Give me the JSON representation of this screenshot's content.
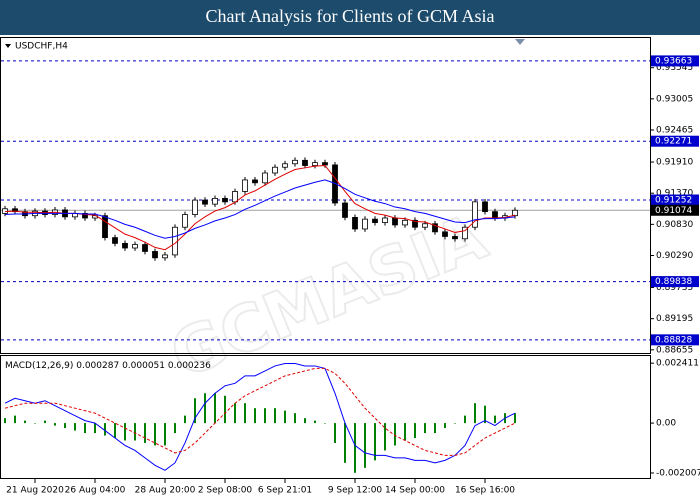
{
  "title": "Chart Analysis for Clients of GCM Asia",
  "watermark": "GCMASIA",
  "chart_data": [
    {
      "type": "candlestick",
      "symbol": "USDCHF,H4",
      "categories": [
        null,
        null,
        null,
        "21 Aug 2020",
        null,
        null,
        null,
        null,
        null,
        "26 Aug 04:00",
        null,
        null,
        null,
        null,
        null,
        null,
        "28 Aug 20:00",
        null,
        null,
        null,
        null,
        null,
        "2 Sep 08:00",
        null,
        null,
        null,
        null,
        null,
        "6 Sep 21:01",
        null,
        null,
        null,
        null,
        null,
        null,
        "9 Sep 12:00",
        null,
        null,
        null,
        null,
        null,
        "14 Sep 00:00",
        null,
        null,
        null,
        null,
        null,
        null,
        "16 Sep 16:00",
        null,
        null,
        null
      ],
      "open": [
        0.9102,
        0.911,
        0.9105,
        0.9098,
        0.9106,
        0.91,
        0.9108,
        0.9096,
        0.9102,
        0.9094,
        0.9098,
        0.906,
        0.905,
        0.9042,
        0.9048,
        0.9036,
        0.9025,
        0.903,
        0.9078,
        0.91,
        0.9125,
        0.9118,
        0.9128,
        0.9122,
        0.914,
        0.916,
        0.9155,
        0.9172,
        0.9182,
        0.9188,
        0.9194,
        0.9185,
        0.919,
        0.9186,
        0.912,
        0.9095,
        0.9075,
        0.9092,
        0.9086,
        0.9094,
        0.9082,
        0.909,
        0.9078,
        0.9084,
        0.907,
        0.9062,
        0.9058,
        0.9078,
        0.9122,
        0.9105,
        0.9094,
        0.9098
      ],
      "high": [
        0.9115,
        0.9115,
        0.911,
        0.9111,
        0.9111,
        0.9113,
        0.9113,
        0.9107,
        0.9107,
        0.9103,
        0.9103,
        0.9065,
        0.9055,
        0.9053,
        0.9053,
        0.9041,
        0.9035,
        0.9083,
        0.9105,
        0.913,
        0.913,
        0.9133,
        0.9133,
        0.9145,
        0.9165,
        0.9165,
        0.9177,
        0.9187,
        0.9193,
        0.9199,
        0.9199,
        0.9195,
        0.9195,
        0.9191,
        0.9125,
        0.91,
        0.9097,
        0.9097,
        0.9099,
        0.9099,
        0.9095,
        0.9095,
        0.9089,
        0.9089,
        0.9075,
        0.9067,
        0.9083,
        0.9127,
        0.9127,
        0.911,
        0.9103,
        0.91124
      ],
      "low": [
        0.9097,
        0.91,
        0.9093,
        0.9093,
        0.9095,
        0.9095,
        0.9091,
        0.9091,
        0.9089,
        0.9089,
        0.9055,
        0.9045,
        0.9037,
        0.9037,
        0.9031,
        0.902,
        0.902,
        0.9025,
        0.9073,
        0.9095,
        0.9113,
        0.9113,
        0.9117,
        0.9117,
        0.9135,
        0.915,
        0.915,
        0.9167,
        0.9177,
        0.9183,
        0.918,
        0.918,
        0.9181,
        0.9115,
        0.909,
        0.907,
        0.907,
        0.9081,
        0.9081,
        0.9077,
        0.9077,
        0.9073,
        0.9073,
        0.9065,
        0.9057,
        0.9053,
        0.9053,
        0.9073,
        0.91,
        0.9089,
        0.9089,
        0.9093
      ],
      "close": [
        0.911,
        0.9105,
        0.9098,
        0.9106,
        0.91,
        0.9108,
        0.9096,
        0.9102,
        0.9094,
        0.9098,
        0.906,
        0.905,
        0.9042,
        0.9048,
        0.9036,
        0.9025,
        0.903,
        0.9078,
        0.91,
        0.9125,
        0.9118,
        0.9128,
        0.9122,
        0.914,
        0.916,
        0.9155,
        0.9172,
        0.9182,
        0.9188,
        0.9194,
        0.9185,
        0.919,
        0.9186,
        0.912,
        0.9095,
        0.9075,
        0.9092,
        0.9086,
        0.9094,
        0.9082,
        0.909,
        0.9078,
        0.9084,
        0.907,
        0.9062,
        0.9058,
        0.9078,
        0.9122,
        0.9105,
        0.9094,
        0.9098,
        0.91074
      ],
      "up_color": "#ffffff",
      "down_color": "#000000",
      "series": [
        {
          "color": "#e00000",
          "values": [
            0.9105,
            0.9106,
            0.9104,
            0.9104,
            0.9103,
            0.9104,
            0.9102,
            0.9102,
            0.91,
            0.9099,
            0.9088,
            0.9077,
            0.9066,
            0.906,
            0.9052,
            0.9043,
            0.9039,
            0.905,
            0.9066,
            0.9084,
            0.9096,
            0.9106,
            0.9112,
            0.9121,
            0.9134,
            0.9141,
            0.9151,
            0.9161,
            0.917,
            0.9178,
            0.9181,
            0.9184,
            0.9185,
            0.9163,
            0.914,
            0.9119,
            0.911,
            0.9102,
            0.9099,
            0.9094,
            0.9093,
            0.9088,
            0.9087,
            0.9081,
            0.9075,
            0.9069,
            0.9072,
            0.9089,
            0.9094,
            0.9094,
            0.9095,
            0.9099
          ]
        },
        {
          "color": "#0000ff",
          "values": [
            0.91,
            0.9101,
            0.9101,
            0.9102,
            0.9102,
            0.9102,
            0.9102,
            0.9102,
            0.9101,
            0.9101,
            0.9096,
            0.909,
            0.9083,
            0.9078,
            0.9071,
            0.9064,
            0.9059,
            0.9062,
            0.9068,
            0.9076,
            0.9082,
            0.9089,
            0.9094,
            0.91,
            0.9109,
            0.9116,
            0.9124,
            0.9132,
            0.9139,
            0.9146,
            0.9151,
            0.9156,
            0.916,
            0.9154,
            0.9145,
            0.9135,
            0.9129,
            0.9123,
            0.9119,
            0.9113,
            0.911,
            0.9105,
            0.9102,
            0.9097,
            0.9092,
            0.9087,
            0.9086,
            0.9091,
            0.9093,
            0.9093,
            0.9094,
            0.9096
          ]
        }
      ],
      "ylim": [
        0.886,
        0.9406
      ],
      "yticks": [
        0.93545,
        0.93005,
        0.92465,
        {
          "value": 0.9191,
          "label": "0.91910"
        },
        {
          "value": 0.9137,
          "label": "0.91370"
        },
        {
          "value": 0.9083,
          "label": "0.90830"
        },
        {
          "value": 0.9029,
          "label": "0.90290"
        },
        0.89735,
        0.89195,
        0.88655
      ],
      "levels": [
        0.93663,
        0.92271,
        0.91252,
        0.89838,
        0.88828
      ],
      "level_color": "#0000cc",
      "last_price": 0.91074
    },
    {
      "type": "macd",
      "label": "MACD(12,26,9)",
      "readout": [
        0.000287,
        5.1e-05,
        0.000236
      ],
      "histogram": {
        "color": "#008000",
        "values": [
          0.0002,
          0.0003,
          0.0001,
          0,
          0.0001,
          -0.0001,
          -0.0002,
          -0.0003,
          -0.0004,
          -0.0004,
          -0.0005,
          -0.0006,
          -0.0007,
          -0.0007,
          -0.0008,
          -0.0009,
          -0.0009,
          -0.0004,
          0.0003,
          0.001,
          0.0012,
          0.0012,
          0.0011,
          0.0008,
          0.0008,
          0.0006,
          0.0006,
          0.0006,
          0.0005,
          0.0004,
          0.0002,
          0.0001,
          0,
          -0.0008,
          -0.0016,
          -0.002,
          -0.0018,
          -0.0015,
          -0.0011,
          -0.0009,
          -0.0007,
          -0.0006,
          -0.0004,
          -0.0004,
          -0.0002,
          0,
          0.0003,
          0.0008,
          0.0007,
          0.0003,
          0.0004,
          0.0004
        ]
      },
      "series": [
        {
          "color": "#0000ff",
          "values": [
            0.0008,
            0.001,
            0.0009,
            0.0008,
            0.0009,
            0.0007,
            0.0005,
            0.0003,
            0.0001,
            0,
            -0.0003,
            -0.0006,
            -0.0009,
            -0.0011,
            -0.0014,
            -0.0017,
            -0.0019,
            -0.0016,
            -0.0008,
            0.0002,
            0.0008,
            0.0012,
            0.0015,
            0.0016,
            0.0019,
            0.0019,
            0.0021,
            0.0023,
            0.0024,
            0.0024,
            0.0023,
            0.0023,
            0.0022,
            0.0012,
            0,
            -0.0009,
            -0.0012,
            -0.0013,
            -0.0013,
            -0.0014,
            -0.0014,
            -0.0015,
            -0.0015,
            -0.0016,
            -0.0015,
            -0.0013,
            -0.0009,
            -0.0001,
            0.0001,
            -0.0001,
            0.0002,
            0.0004
          ]
        },
        {
          "color": "#e00000",
          "dashed": true,
          "values": [
            0.0006,
            0.0007,
            0.0008,
            0.0008,
            0.0008,
            0.0008,
            0.0007,
            0.0006,
            0.0005,
            0.0004,
            0.0002,
            0,
            -0.0002,
            -0.0004,
            -0.0006,
            -0.0008,
            -0.001,
            -0.0012,
            -0.0011,
            -0.0008,
            -0.0004,
            0,
            0.0004,
            0.0008,
            0.0011,
            0.0013,
            0.0015,
            0.0017,
            0.0019,
            0.002,
            0.0021,
            0.0022,
            0.0022,
            0.002,
            0.0016,
            0.0011,
            0.0006,
            0.0002,
            -0.0002,
            -0.0005,
            -0.0007,
            -0.0009,
            -0.0011,
            -0.0012,
            -0.0013,
            -0.0013,
            -0.0012,
            -0.0009,
            -0.0006,
            -0.0004,
            -0.0002,
            0
          ]
        }
      ],
      "ylim": [
        -0.00225,
        0.0027
      ],
      "yticks": [
        0.002411,
        {
          "value": 0,
          "label": "0.00"
        },
        -0.002007
      ]
    }
  ]
}
